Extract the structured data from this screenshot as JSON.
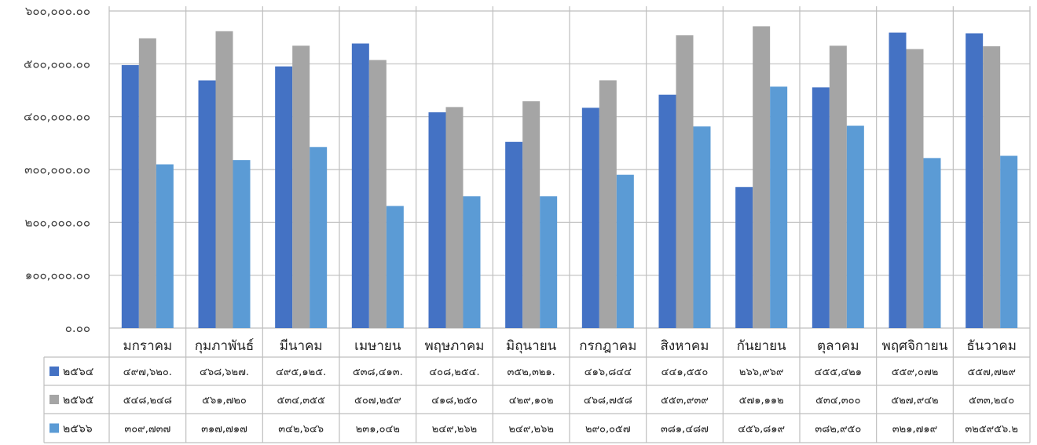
{
  "chart_data": {
    "type": "bar",
    "categories": [
      "มกราคม",
      "กุมภาพันธ์",
      "มีนาคม",
      "เมษายน",
      "พฤษภาคม",
      "มิถุนายน",
      "กรกฎาคม",
      "สิงหาคม",
      "กันยายน",
      "ตุลาคม",
      "พฤศจิกายน",
      "ธันวาคม"
    ],
    "series": [
      {
        "name": "๒๕๖๔",
        "color": "#4472C4",
        "values": [
          497620,
          468627,
          495125,
          538413,
          408254,
          352321,
          416844,
          441550,
          266969,
          455421,
          559072,
          557729
        ],
        "labels": [
          "๔๙๗,๖๒๐.",
          "๔๖๘,๖๒๗.",
          "๔๙๕,๑๒๕.",
          "๕๓๘,๔๑๓.",
          "๔๐๘,๒๕๔.",
          "๓๕๒,๓๒๑.",
          "๔๑๖,๘๔๔",
          "๔๔๑,๕๕๐",
          "๒๖๖,๙๖๙",
          "๔๕๕,๔๒๑",
          "๕๕๙,๐๗๒",
          "๕๕๗,๗๒๙"
        ]
      },
      {
        "name": "๒๕๖๕",
        "color": "#A5A5A5",
        "values": [
          548248,
          561720,
          534355,
          507259,
          418250,
          429102,
          468758,
          553939,
          571112,
          534300,
          527942,
          533240
        ],
        "labels": [
          "๕๔๘,๒๔๘",
          "๕๖๑,๗๒๐",
          "๕๓๔,๓๕๕",
          "๕๐๗,๒๕๙",
          "๔๑๘,๒๕๐",
          "๔๒๙,๑๐๒",
          "๔๖๘,๗๕๘",
          "๕๕๓,๙๓๙",
          "๕๗๑,๑๑๒",
          "๕๓๔,๓๐๐",
          "๕๒๗,๙๔๒",
          "๕๓๓,๒๔๐"
        ]
      },
      {
        "name": "๒๕๖๖",
        "color": "#5B9BD5",
        "values": [
          309737,
          317717,
          342646,
          231042,
          249262,
          249262,
          290057,
          381487,
          456819,
          382950,
          321719,
          325956.2
        ],
        "labels": [
          "๓๐๙,๗๓๗",
          "๓๑๗,๗๑๗",
          "๓๔๒,๖๔๖",
          "๒๓๑,๐๔๒",
          "๒๔๙,๒๖๒",
          "๒๔๙,๒๖๒",
          "๒๙๐,๐๕๗",
          "๓๘๑,๔๘๗",
          "๔๕๖,๘๑๙",
          "๓๘๒,๙๕๐",
          "๓๒๑,๗๑๙",
          "๓๒๕๙๕๖.๒"
        ]
      }
    ],
    "ylim": [
      0,
      600000
    ],
    "yticks": [
      0,
      100000,
      200000,
      300000,
      400000,
      500000,
      600000
    ],
    "ytick_labels": [
      "๐.๐๐",
      "๑๐๐,๐๐๐.๐๐",
      "๒๐๐,๐๐๐.๐๐",
      "๓๐๐,๐๐๐.๐๐",
      "๔๐๐,๐๐๐.๐๐",
      "๕๐๐,๐๐๐.๐๐",
      "๖๐๐,๐๐๐.๐๐"
    ],
    "grid": true,
    "legend": "data-table-below",
    "title": "",
    "xlabel": "",
    "ylabel": ""
  }
}
